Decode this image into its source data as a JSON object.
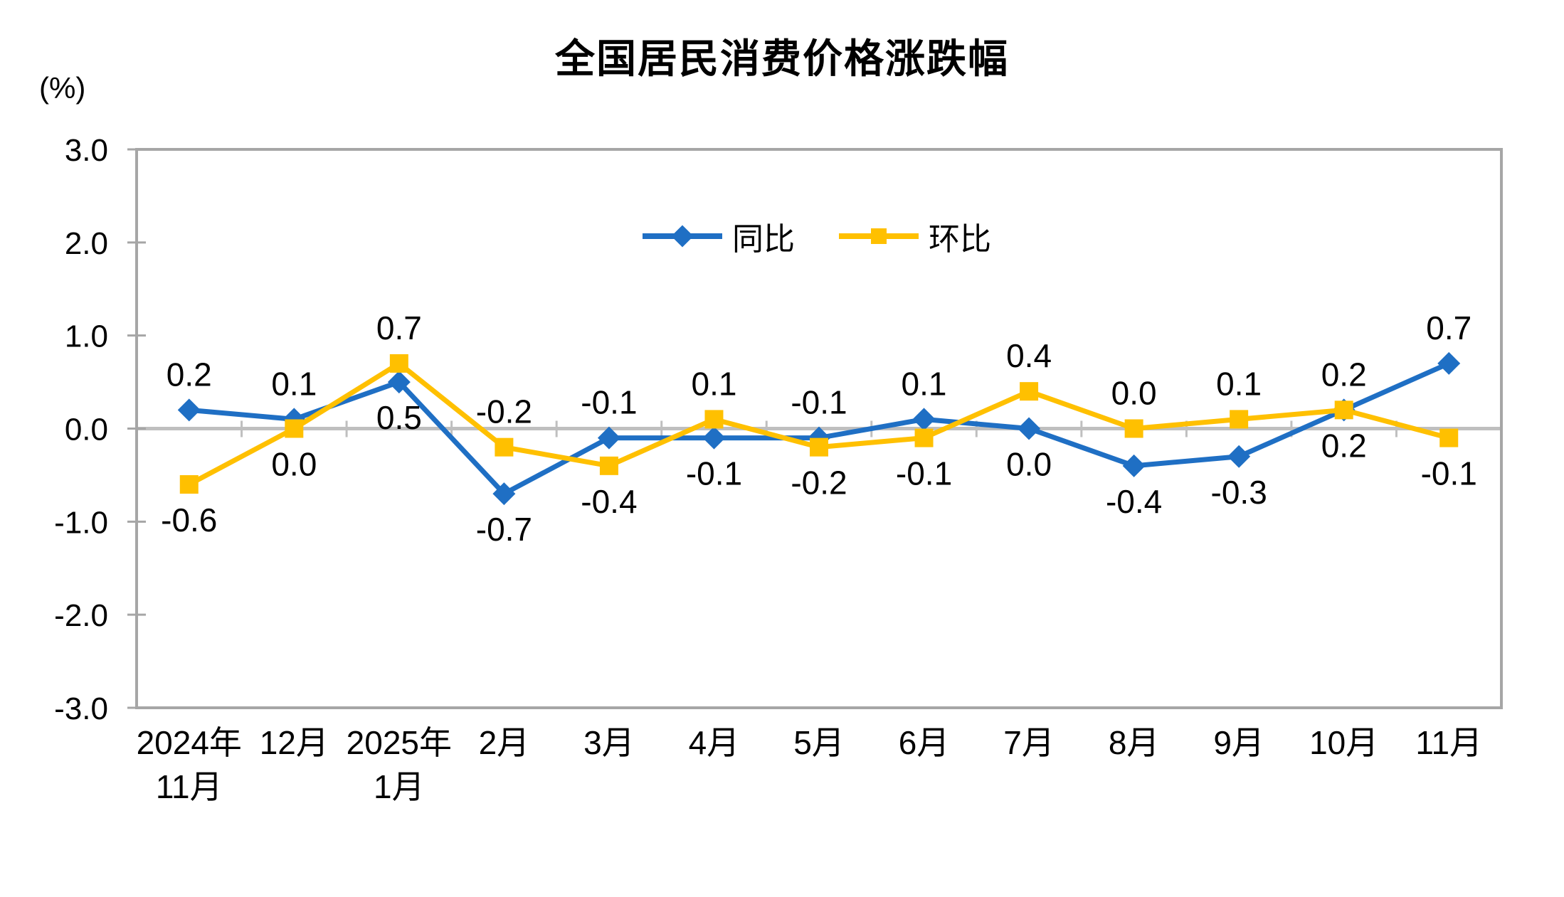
{
  "chart": {
    "title": "全国居民消费价格涨跌幅",
    "unit_label": "(%)"
  },
  "chart_data": {
    "type": "line",
    "title": "全国居民消费价格涨跌幅",
    "ylabel": "(%)",
    "ylim": [
      -3.0,
      3.0
    ],
    "ytick_step": 1.0,
    "yticks": [
      "3.0",
      "2.0",
      "1.0",
      "0.0",
      "-1.0",
      "-2.0",
      "-3.0"
    ],
    "categories": [
      "2024年\n11月",
      "12月",
      "2025年\n1月",
      "2月",
      "3月",
      "4月",
      "5月",
      "6月",
      "7月",
      "8月",
      "9月",
      "10月",
      "11月"
    ],
    "series": [
      {
        "id": "yoy",
        "name": "同比",
        "color": "#1F6FC4",
        "marker": "diamond",
        "values": [
          0.2,
          0.1,
          0.5,
          -0.7,
          -0.1,
          -0.1,
          -0.1,
          0.1,
          0.0,
          -0.4,
          -0.3,
          0.2,
          0.7
        ],
        "labels": [
          "0.2",
          "0.1",
          "0.5",
          "-0.7",
          "-0.1",
          "-0.1",
          "-0.1",
          "0.1",
          "0.0",
          "-0.4",
          "-0.3",
          "0.2",
          "0.7"
        ],
        "label_pos": [
          "above",
          "above",
          "below",
          "below",
          "above",
          "below",
          "above",
          "above",
          "below",
          "below",
          "below",
          "below",
          "above"
        ]
      },
      {
        "id": "mom",
        "name": "环比",
        "color": "#FFC000",
        "marker": "square",
        "values": [
          -0.6,
          0.0,
          0.7,
          -0.2,
          -0.4,
          0.1,
          -0.2,
          -0.1,
          0.4,
          0.0,
          0.1,
          0.2,
          -0.1
        ],
        "labels": [
          "-0.6",
          "0.0",
          "0.7",
          "-0.2",
          "-0.4",
          "0.1",
          "-0.2",
          "-0.1",
          "0.4",
          "0.0",
          "0.1",
          "0.2",
          "-0.1"
        ],
        "label_pos": [
          "below",
          "below",
          "above",
          "above",
          "below",
          "above",
          "below",
          "below",
          "above",
          "above",
          "above",
          "above",
          "below"
        ]
      }
    ],
    "grid": false,
    "legend_position": "top-center-inside",
    "axis_color": "#A6A6A6",
    "zero_line_color": "#BFBFBF",
    "text_color": "#000000"
  }
}
